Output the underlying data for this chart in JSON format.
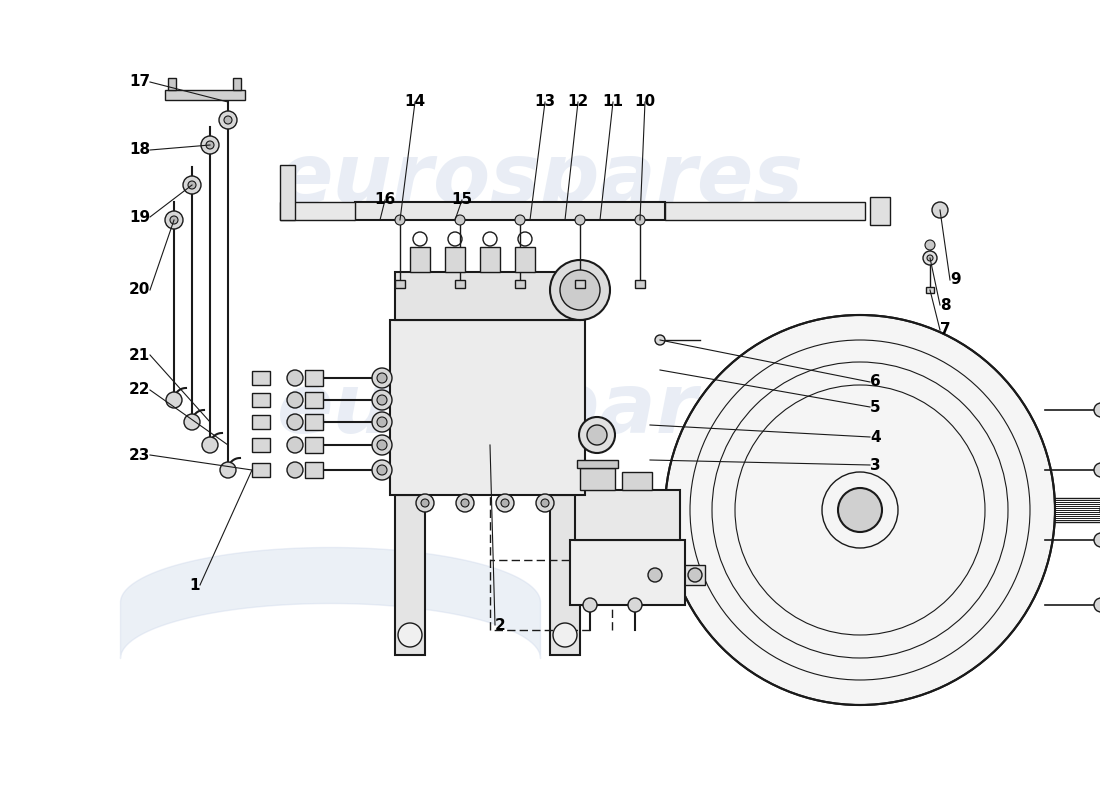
{
  "background_color": "#ffffff",
  "watermark_text": "eurospares",
  "watermark_color": "#c8d4e8",
  "watermark_alpha": 0.4,
  "line_color": "#1a1a1a",
  "label_color": "#000000",
  "figsize": [
    11.0,
    8.0
  ],
  "dpi": 100
}
